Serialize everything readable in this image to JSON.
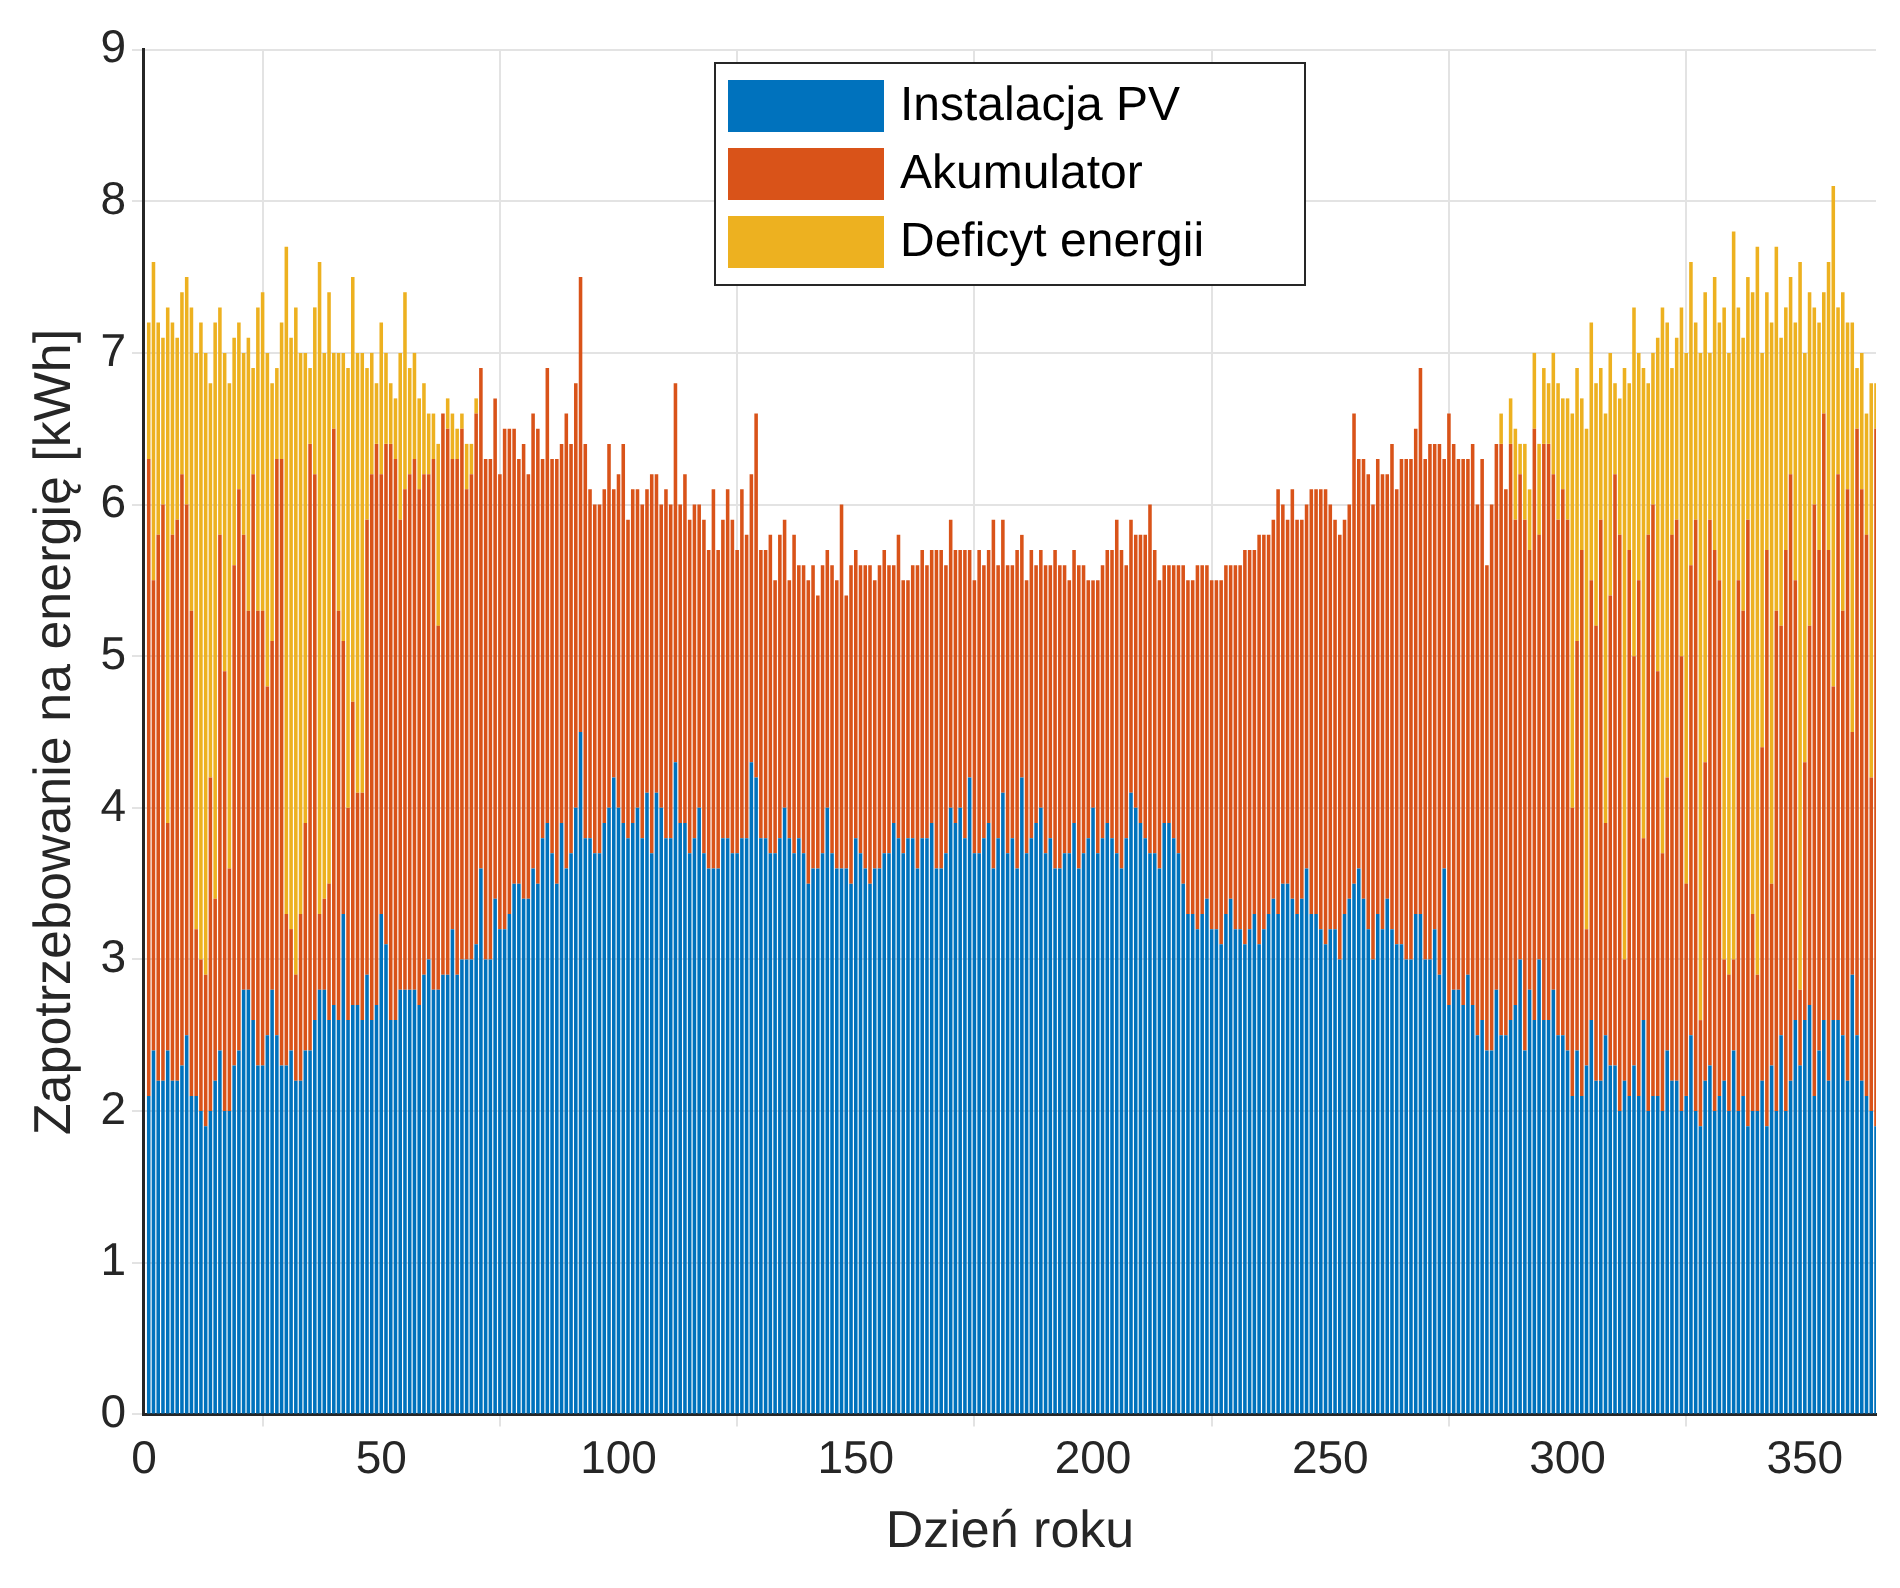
{
  "chart_data": {
    "type": "bar",
    "stacked": true,
    "xlabel": "Dzień roku",
    "ylabel": "Zapotrzebowanie na energię [kWh]",
    "xlim": [
      0,
      365
    ],
    "xticks": [
      0,
      50,
      100,
      150,
      200,
      250,
      300,
      350
    ],
    "ylim": [
      0,
      9
    ],
    "yticks": [
      0,
      1,
      2,
      3,
      4,
      5,
      6,
      7,
      8,
      9
    ],
    "grid": true,
    "legend": "top",
    "x": [
      1,
      2,
      3,
      4,
      5,
      6,
      7,
      8,
      9,
      10,
      11,
      12,
      13,
      14,
      15,
      16,
      17,
      18,
      19,
      20,
      21,
      22,
      23,
      24,
      25,
      26,
      27,
      28,
      29,
      30,
      31,
      32,
      33,
      34,
      35,
      36,
      37,
      38,
      39,
      40,
      41,
      42,
      43,
      44,
      45,
      46,
      47,
      48,
      49,
      50,
      51,
      52,
      53,
      54,
      55,
      56,
      57,
      58,
      59,
      60,
      61,
      62,
      63,
      64,
      65,
      66,
      67,
      68,
      69,
      70,
      71,
      72,
      73,
      74,
      75,
      76,
      77,
      78,
      79,
      80,
      81,
      82,
      83,
      84,
      85,
      86,
      87,
      88,
      89,
      90,
      91,
      92,
      93,
      94,
      95,
      96,
      97,
      98,
      99,
      100,
      101,
      102,
      103,
      104,
      105,
      106,
      107,
      108,
      109,
      110,
      111,
      112,
      113,
      114,
      115,
      116,
      117,
      118,
      119,
      120,
      121,
      122,
      123,
      124,
      125,
      126,
      127,
      128,
      129,
      130,
      131,
      132,
      133,
      134,
      135,
      136,
      137,
      138,
      139,
      140,
      141,
      142,
      143,
      144,
      145,
      146,
      147,
      148,
      149,
      150,
      151,
      152,
      153,
      154,
      155,
      156,
      157,
      158,
      159,
      160,
      161,
      162,
      163,
      164,
      165,
      166,
      167,
      168,
      169,
      170,
      171,
      172,
      173,
      174,
      175,
      176,
      177,
      178,
      179,
      180,
      181,
      182,
      183,
      184,
      185,
      186,
      187,
      188,
      189,
      190,
      191,
      192,
      193,
      194,
      195,
      196,
      197,
      198,
      199,
      200,
      201,
      202,
      203,
      204,
      205,
      206,
      207,
      208,
      209,
      210,
      211,
      212,
      213,
      214,
      215,
      216,
      217,
      218,
      219,
      220,
      221,
      222,
      223,
      224,
      225,
      226,
      227,
      228,
      229,
      230,
      231,
      232,
      233,
      234,
      235,
      236,
      237,
      238,
      239,
      240,
      241,
      242,
      243,
      244,
      245,
      246,
      247,
      248,
      249,
      250,
      251,
      252,
      253,
      254,
      255,
      256,
      257,
      258,
      259,
      260,
      261,
      262,
      263,
      264,
      265,
      266,
      267,
      268,
      269,
      270,
      271,
      272,
      273,
      274,
      275,
      276,
      277,
      278,
      279,
      280,
      281,
      282,
      283,
      284,
      285,
      286,
      287,
      288,
      289,
      290,
      291,
      292,
      293,
      294,
      295,
      296,
      297,
      298,
      299,
      300,
      301,
      302,
      303,
      304,
      305,
      306,
      307,
      308,
      309,
      310,
      311,
      312,
      313,
      314,
      315,
      316,
      317,
      318,
      319,
      320,
      321,
      322,
      323,
      324,
      325,
      326,
      327,
      328,
      329,
      330,
      331,
      332,
      333,
      334,
      335,
      336,
      337,
      338,
      339,
      340,
      341,
      342,
      343,
      344,
      345,
      346,
      347,
      348,
      349,
      350,
      351,
      352,
      353,
      354,
      355,
      356,
      357,
      358,
      359,
      360,
      361,
      362,
      363,
      364,
      365
    ],
    "series": [
      {
        "name": "Instalacja PV",
        "color": "#0072bd",
        "values": [
          2.1,
          2.4,
          2.2,
          2.2,
          2.4,
          2.2,
          2.2,
          2.3,
          2.5,
          2.1,
          2.1,
          2.0,
          1.9,
          2.0,
          2.2,
          2.4,
          2.0,
          2.0,
          2.3,
          2.4,
          2.8,
          2.8,
          2.6,
          2.3,
          2.3,
          2.5,
          2.8,
          2.5,
          2.3,
          2.3,
          2.4,
          2.2,
          2.2,
          2.4,
          2.4,
          2.6,
          2.8,
          2.8,
          2.6,
          2.7,
          2.6,
          3.3,
          2.6,
          2.7,
          2.7,
          2.6,
          2.9,
          2.6,
          2.7,
          3.3,
          3.1,
          2.6,
          2.6,
          2.8,
          2.8,
          2.8,
          2.8,
          2.7,
          2.9,
          3.0,
          2.8,
          2.8,
          2.9,
          2.9,
          3.2,
          2.9,
          3.0,
          3.0,
          3.0,
          3.1,
          3.6,
          3.0,
          3.0,
          3.4,
          3.2,
          3.2,
          3.3,
          3.5,
          3.5,
          3.4,
          3.4,
          3.6,
          3.5,
          3.8,
          3.9,
          3.7,
          3.5,
          3.9,
          3.6,
          3.7,
          4.0,
          4.5,
          3.8,
          3.8,
          3.7,
          3.7,
          3.9,
          4.0,
          4.2,
          4.0,
          3.9,
          3.8,
          3.9,
          4.0,
          3.8,
          4.1,
          3.7,
          4.1,
          4.0,
          3.8,
          3.8,
          4.3,
          3.9,
          3.9,
          3.7,
          3.8,
          4.0,
          3.7,
          3.6,
          3.6,
          3.6,
          3.8,
          3.8,
          3.7,
          3.7,
          3.8,
          3.8,
          4.3,
          4.2,
          3.8,
          3.8,
          3.7,
          3.7,
          3.8,
          4.0,
          3.8,
          3.7,
          3.8,
          3.7,
          3.5,
          3.6,
          3.6,
          3.7,
          4.0,
          3.7,
          3.6,
          3.6,
          3.6,
          3.5,
          3.8,
          3.7,
          3.6,
          3.5,
          3.6,
          3.6,
          3.7,
          3.7,
          3.9,
          3.8,
          3.7,
          3.8,
          3.8,
          3.6,
          3.8,
          3.8,
          3.9,
          3.6,
          3.6,
          3.7,
          4.0,
          3.9,
          4.0,
          3.8,
          4.2,
          3.7,
          3.7,
          3.8,
          3.9,
          3.6,
          3.8,
          4.1,
          3.7,
          3.8,
          3.6,
          4.2,
          3.7,
          3.8,
          3.9,
          4.0,
          3.7,
          3.8,
          3.6,
          3.6,
          3.7,
          3.7,
          3.9,
          3.6,
          3.7,
          3.8,
          4.0,
          3.7,
          3.8,
          3.9,
          3.8,
          3.7,
          3.6,
          3.8,
          4.1,
          4.0,
          3.9,
          3.8,
          3.7,
          3.7,
          3.6,
          3.9,
          3.9,
          3.8,
          3.7,
          3.5,
          3.3,
          3.3,
          3.2,
          3.3,
          3.4,
          3.2,
          3.2,
          3.1,
          3.3,
          3.4,
          3.2,
          3.2,
          3.1,
          3.2,
          3.3,
          3.1,
          3.2,
          3.3,
          3.4,
          3.3,
          3.5,
          3.5,
          3.4,
          3.3,
          3.4,
          3.6,
          3.3,
          3.3,
          3.2,
          3.1,
          3.2,
          3.2,
          3.0,
          3.3,
          3.4,
          3.5,
          3.6,
          3.4,
          3.2,
          3.0,
          3.3,
          3.2,
          3.4,
          3.2,
          3.1,
          3.1,
          3.0,
          3.0,
          3.3,
          3.3,
          3.0,
          3.0,
          3.2,
          2.9,
          3.6,
          2.7,
          2.8,
          2.8,
          2.7,
          2.9,
          2.7,
          2.5,
          2.6,
          2.4,
          2.4,
          2.8,
          2.5,
          2.5,
          2.6,
          2.7,
          3.0,
          2.4,
          2.8,
          2.6,
          3.0,
          2.6,
          2.6,
          2.8,
          2.5,
          2.5,
          2.4,
          2.1,
          2.4,
          2.1,
          2.3,
          2.6,
          2.2,
          2.2,
          2.5,
          2.3,
          2.3,
          2.0,
          2.2,
          2.1,
          2.3,
          2.1,
          2.6,
          2.0,
          2.1,
          2.1,
          2.0,
          2.4,
          2.2,
          2.2,
          2.0,
          2.1,
          2.5,
          2.0,
          1.9,
          2.2,
          2.3,
          2.0,
          2.1,
          2.2,
          2.0,
          2.4,
          2.0,
          2.1,
          1.9,
          2.0,
          2.0,
          2.2,
          1.9,
          2.3,
          2.0,
          2.5,
          2.0,
          2.2,
          2.6,
          2.3,
          2.6,
          2.7,
          2.1,
          2.4,
          2.6,
          2.2,
          2.6,
          2.6,
          2.5,
          2.2,
          2.9,
          2.5,
          2.2,
          2.1,
          2.0,
          1.9
        ]
      },
      {
        "name": "Akumulator",
        "color": "#d95319",
        "values": [
          4.2,
          3.1,
          3.6,
          3.8,
          1.5,
          3.6,
          3.7,
          3.9,
          3.5,
          3.2,
          1.1,
          1.0,
          1.0,
          2.2,
          1.2,
          3.4,
          2.9,
          1.6,
          3.3,
          3.7,
          3.0,
          2.5,
          3.6,
          3.0,
          3.0,
          2.3,
          2.3,
          3.8,
          4.0,
          1.0,
          0.8,
          0.7,
          1.1,
          1.5,
          4.0,
          3.6,
          0.5,
          0.6,
          0.9,
          3.8,
          2.7,
          1.8,
          1.4,
          2.0,
          1.4,
          1.5,
          3.0,
          3.6,
          3.7,
          2.9,
          3.3,
          3.8,
          3.7,
          3.1,
          3.3,
          3.4,
          3.5,
          3.4,
          3.3,
          3.2,
          3.5,
          2.4,
          3.7,
          3.6,
          3.1,
          3.4,
          3.5,
          3.1,
          3.2,
          3.5,
          3.3,
          3.3,
          3.3,
          3.3,
          3.0,
          3.3,
          3.2,
          3.0,
          2.8,
          3.0,
          2.8,
          3.0,
          3.0,
          2.5,
          3.0,
          2.6,
          2.8,
          2.5,
          3.0,
          2.7,
          2.8,
          3.0,
          2.6,
          2.3,
          2.3,
          2.3,
          2.2,
          2.4,
          1.9,
          2.2,
          2.5,
          2.1,
          2.2,
          2.1,
          2.2,
          2.0,
          2.5,
          2.1,
          2.0,
          2.3,
          2.2,
          2.5,
          2.1,
          2.3,
          2.2,
          2.2,
          2.0,
          2.2,
          2.1,
          2.5,
          2.1,
          2.1,
          2.3,
          2.2,
          2.0,
          2.3,
          2.0,
          1.9,
          2.4,
          1.9,
          1.9,
          2.1,
          1.8,
          2.0,
          1.9,
          1.7,
          2.1,
          1.8,
          1.9,
          2.0,
          2.0,
          1.8,
          1.9,
          1.7,
          1.9,
          1.9,
          2.4,
          1.8,
          2.1,
          1.9,
          1.9,
          2.0,
          2.1,
          1.9,
          2.0,
          2.0,
          1.9,
          1.7,
          2.0,
          1.8,
          1.7,
          1.8,
          2.0,
          1.9,
          1.8,
          1.8,
          2.1,
          2.1,
          1.9,
          1.9,
          1.8,
          1.7,
          1.9,
          1.5,
          1.8,
          2.0,
          1.8,
          1.8,
          2.3,
          1.8,
          1.8,
          1.9,
          1.8,
          2.1,
          1.6,
          1.8,
          1.9,
          1.7,
          1.7,
          1.9,
          1.8,
          2.1,
          2.0,
          1.9,
          1.8,
          1.8,
          2.0,
          1.9,
          1.7,
          1.5,
          1.8,
          1.8,
          1.8,
          1.9,
          2.2,
          2.1,
          1.8,
          1.8,
          1.8,
          1.9,
          2.0,
          2.3,
          2.0,
          1.9,
          1.7,
          1.7,
          1.8,
          1.9,
          2.1,
          2.2,
          2.2,
          2.4,
          2.3,
          2.2,
          2.3,
          2.3,
          2.4,
          2.3,
          2.2,
          2.4,
          2.4,
          2.6,
          2.5,
          2.4,
          2.7,
          2.6,
          2.5,
          2.5,
          2.8,
          2.5,
          2.4,
          2.7,
          2.6,
          2.5,
          2.4,
          2.8,
          2.8,
          2.9,
          3.0,
          2.8,
          2.7,
          2.8,
          2.6,
          2.6,
          3.1,
          2.7,
          2.9,
          3.0,
          3.0,
          3.0,
          3.0,
          2.8,
          3.2,
          3.0,
          3.2,
          3.3,
          3.3,
          3.2,
          3.6,
          3.3,
          3.4,
          3.2,
          3.5,
          2.7,
          3.9,
          3.6,
          3.5,
          3.6,
          3.4,
          3.7,
          3.5,
          3.7,
          3.2,
          3.6,
          3.6,
          3.9,
          3.6,
          3.8,
          3.2,
          3.2,
          3.5,
          2.9,
          3.9,
          2.8,
          3.8,
          3.8,
          3.4,
          3.4,
          3.6,
          3.5,
          1.9,
          2.7,
          3.6,
          0.9,
          2.9,
          3.0,
          3.7,
          1.4,
          3.1,
          3.9,
          3.8,
          0.8,
          3.6,
          2.7,
          3.4,
          1.2,
          3.8,
          3.9,
          2.8,
          1.7,
          1.8,
          3.6,
          3.7,
          3.0,
          1.4,
          3.1,
          3.9,
          0.7,
          2.1,
          3.6,
          3.7,
          3.4,
          0.8,
          0.9,
          0.6,
          3.5,
          3.2,
          4.0,
          1.3,
          0.9,
          2.2,
          3.8,
          1.2,
          3.3,
          2.7,
          3.7,
          4.0,
          2.9,
          0.5,
          1.7,
          2.5,
          3.9,
          3.3,
          4.0,
          3.5,
          2.2,
          3.6,
          2.8,
          3.9,
          1.6,
          4.0,
          3.9,
          3.7,
          2.2,
          4.6
        ]
      },
      {
        "name": "Deficyt energii",
        "color": "#edb120",
        "values": [
          0.9,
          2.1,
          1.4,
          1.1,
          3.4,
          1.4,
          1.2,
          1.2,
          1.5,
          2.0,
          3.8,
          4.2,
          4.1,
          2.6,
          3.8,
          1.5,
          2.1,
          3.2,
          1.5,
          1.1,
          1.2,
          1.8,
          0.7,
          2.0,
          2.1,
          2.2,
          1.7,
          0.6,
          0.9,
          4.4,
          3.9,
          4.4,
          3.7,
          3.1,
          0.5,
          1.1,
          4.3,
          3.6,
          3.9,
          0.5,
          1.7,
          1.9,
          2.9,
          2.8,
          2.9,
          2.9,
          1.0,
          0.8,
          0.4,
          1.0,
          0.6,
          0.4,
          0.4,
          1.1,
          1.3,
          0.7,
          0.7,
          0.6,
          0.6,
          0.4,
          0.3,
          1.2,
          0,
          0.2,
          0.3,
          0.2,
          0.1,
          0.3,
          0.2,
          0.1,
          0,
          0,
          0,
          0,
          0,
          0,
          0,
          0,
          0,
          0,
          0,
          0,
          0,
          0,
          0,
          0,
          0,
          0,
          0,
          0,
          0,
          0,
          0,
          0,
          0,
          0,
          0,
          0,
          0,
          0,
          0,
          0,
          0,
          0,
          0,
          0,
          0,
          0,
          0,
          0,
          0,
          0,
          0,
          0,
          0,
          0,
          0,
          0,
          0,
          0,
          0,
          0,
          0,
          0,
          0,
          0,
          0,
          0,
          0,
          0,
          0,
          0,
          0,
          0,
          0,
          0,
          0,
          0,
          0,
          0,
          0,
          0,
          0,
          0,
          0,
          0,
          0,
          0,
          0,
          0,
          0,
          0,
          0,
          0,
          0,
          0,
          0,
          0,
          0,
          0,
          0,
          0,
          0,
          0,
          0,
          0,
          0,
          0,
          0,
          0,
          0,
          0,
          0,
          0,
          0,
          0,
          0,
          0,
          0,
          0,
          0,
          0,
          0,
          0,
          0,
          0,
          0,
          0,
          0,
          0,
          0,
          0,
          0,
          0,
          0,
          0,
          0,
          0,
          0,
          0,
          0,
          0,
          0,
          0,
          0,
          0,
          0,
          0,
          0,
          0,
          0,
          0,
          0,
          0,
          0,
          0,
          0,
          0,
          0,
          0,
          0,
          0,
          0,
          0,
          0,
          0,
          0,
          0,
          0,
          0,
          0,
          0,
          0,
          0,
          0,
          0,
          0,
          0,
          0,
          0,
          0,
          0,
          0,
          0,
          0,
          0,
          0,
          0,
          0,
          0,
          0,
          0,
          0,
          0,
          0,
          0,
          0,
          0,
          0,
          0,
          0,
          0,
          0,
          0,
          0,
          0,
          0,
          0,
          0,
          0,
          0,
          0,
          0,
          0,
          0,
          0,
          0,
          0,
          0,
          0,
          0,
          0,
          0,
          0,
          0,
          0.2,
          0,
          0.3,
          0.6,
          0.2,
          0.5,
          0.4,
          0.5,
          0.6,
          0.5,
          0.4,
          0.8,
          0.9,
          0.6,
          0.8,
          2.6,
          1.8,
          1.0,
          3.3,
          1.7,
          1.6,
          1.0,
          2.7,
          1.6,
          0.6,
          0.9,
          3.9,
          1.1,
          2.3,
          1.5,
          3.1,
          1.0,
          1.0,
          2.2,
          3.6,
          3.0,
          1.1,
          1.2,
          2.3,
          3.5,
          2.0,
          1.3,
          4.4,
          3.1,
          1.1,
          1.8,
          1.7,
          4.3,
          4.1,
          4.8,
          1.8,
          1.8,
          1.6,
          4.1,
          4.8,
          2.6,
          1.7,
          3.7,
          2.4,
          1.9,
          1.6,
          1.3,
          1.7,
          4.8,
          2.7,
          2.2,
          1.3,
          1.5,
          0.8,
          1.9,
          3.3,
          1.1,
          2.1,
          1.1,
          2.7,
          0.4,
          0.9,
          0.8,
          2.6,
          0.3
        ]
      }
    ]
  }
}
